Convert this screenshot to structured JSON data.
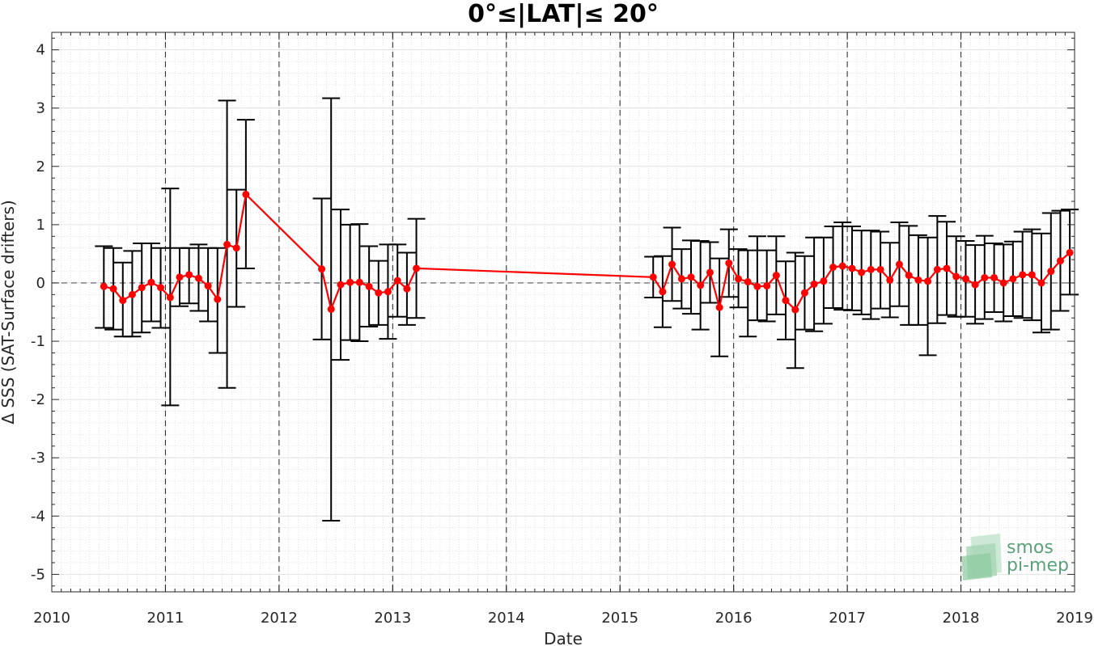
{
  "chart_data": {
    "type": "line",
    "title": "0°≤|LAT|≤ 20°",
    "xlabel": "Date",
    "ylabel": "Δ SSS (SAT-Surface drifters)",
    "xlim": [
      2010,
      2019
    ],
    "ylim": [
      -5.3,
      4.3
    ],
    "x_ticks": [
      "2010",
      "2011",
      "2012",
      "2013",
      "2014",
      "2015",
      "2016",
      "2017",
      "2018",
      "2019"
    ],
    "y_ticks": [
      "4",
      "3",
      "2",
      "1",
      "0",
      "-1",
      "-2",
      "-3",
      "-4",
      "-5"
    ],
    "grid": true,
    "vertical_reference_years": [
      2011,
      2012,
      2013,
      2014,
      2015,
      2016,
      2017,
      2018
    ],
    "zero_line": true,
    "series_color": "#ff0000",
    "errorbar_color": "#000000",
    "segments": [
      {
        "x": [
          2010.458,
          2010.542,
          2010.625,
          2010.708,
          2010.792,
          2010.875,
          2010.958,
          2011.042,
          2011.125,
          2011.208,
          2011.292,
          2011.375,
          2011.458,
          2011.542,
          2011.625,
          2011.708
        ],
        "y": [
          -0.06,
          -0.1,
          -0.3,
          -0.2,
          -0.08,
          0.01,
          -0.08,
          -0.25,
          0.1,
          0.14,
          0.08,
          -0.05,
          -0.28,
          0.66,
          0.6,
          1.52
        ],
        "upper": [
          0.63,
          0.6,
          0.35,
          0.55,
          0.68,
          0.68,
          0.6,
          1.62,
          0.6,
          0.6,
          0.66,
          0.6,
          0.6,
          3.13,
          1.6,
          2.8
        ],
        "lower": [
          -0.77,
          -0.8,
          -0.92,
          -0.92,
          -0.85,
          -0.66,
          -0.77,
          -2.1,
          -0.4,
          -0.35,
          -0.48,
          -0.66,
          -1.2,
          -1.8,
          -0.41,
          0.25
        ]
      },
      {
        "x": [
          2012.375,
          2012.458,
          2012.542,
          2012.625,
          2012.708,
          2012.792,
          2012.875,
          2012.958,
          2013.042,
          2013.125,
          2013.208
        ],
        "y": [
          0.24,
          -0.45,
          -0.03,
          0.01,
          0.01,
          -0.06,
          -0.17,
          -0.15,
          0.04,
          -0.1,
          0.25
        ],
        "upper": [
          1.45,
          3.17,
          1.26,
          1.0,
          1.01,
          0.63,
          0.38,
          0.66,
          0.66,
          0.52,
          1.1
        ],
        "lower": [
          -0.97,
          -4.08,
          -1.32,
          -0.98,
          -1.0,
          -0.75,
          -0.72,
          -0.96,
          -0.58,
          -0.72,
          -0.6
        ]
      },
      {
        "x": [
          2015.292,
          2015.375,
          2015.458,
          2015.542,
          2015.625,
          2015.708,
          2015.792,
          2015.875,
          2015.958,
          2016.042,
          2016.125,
          2016.208,
          2016.292,
          2016.375,
          2016.458,
          2016.542,
          2016.625,
          2016.708,
          2016.792,
          2016.875,
          2016.958,
          2017.042,
          2017.125,
          2017.208,
          2017.292,
          2017.375,
          2017.458,
          2017.542,
          2017.625,
          2017.708,
          2017.792,
          2017.875,
          2017.958,
          2018.042,
          2018.125,
          2018.208,
          2018.292,
          2018.375,
          2018.458,
          2018.542,
          2018.625,
          2018.708,
          2018.792,
          2018.875,
          2018.958
        ],
        "y": [
          0.1,
          -0.15,
          0.32,
          0.07,
          0.1,
          -0.04,
          0.18,
          -0.42,
          0.34,
          0.07,
          0.02,
          -0.06,
          -0.05,
          0.13,
          -0.3,
          -0.46,
          -0.17,
          -0.02,
          0.03,
          0.27,
          0.29,
          0.25,
          0.18,
          0.23,
          0.23,
          0.05,
          0.32,
          0.13,
          0.05,
          0.03,
          0.23,
          0.25,
          0.11,
          0.07,
          -0.03,
          0.09,
          0.09,
          0.0,
          0.07,
          0.14,
          0.14,
          0.0,
          0.2,
          0.38,
          0.52
        ],
        "upper": [
          0.45,
          0.46,
          0.95,
          0.58,
          0.73,
          0.72,
          0.7,
          0.42,
          0.92,
          0.58,
          0.56,
          0.8,
          0.56,
          0.8,
          0.37,
          0.52,
          0.46,
          0.78,
          0.78,
          0.97,
          1.04,
          0.97,
          0.9,
          0.9,
          0.88,
          0.69,
          1.04,
          0.98,
          0.82,
          0.78,
          1.15,
          1.05,
          0.8,
          0.72,
          0.65,
          0.81,
          0.68,
          0.66,
          0.71,
          0.88,
          0.92,
          0.85,
          1.2,
          1.24,
          1.26
        ],
        "lower": [
          -0.25,
          -0.76,
          -0.31,
          -0.44,
          -0.53,
          -0.8,
          -0.34,
          -1.26,
          -0.24,
          -0.42,
          -0.92,
          -0.64,
          -0.66,
          -0.54,
          -0.97,
          -1.46,
          -0.8,
          -0.83,
          -0.7,
          -0.43,
          -0.46,
          -0.47,
          -0.54,
          -0.62,
          -0.44,
          -0.59,
          -0.4,
          -0.72,
          -0.72,
          -1.24,
          -0.69,
          -0.55,
          -0.58,
          -0.58,
          -0.7,
          -0.62,
          -0.5,
          -0.66,
          -0.57,
          -0.6,
          -0.64,
          -0.85,
          -0.8,
          -0.48,
          -0.2
        ]
      }
    ]
  },
  "logo": {
    "line1": "smos",
    "line2": "pi-mep"
  }
}
